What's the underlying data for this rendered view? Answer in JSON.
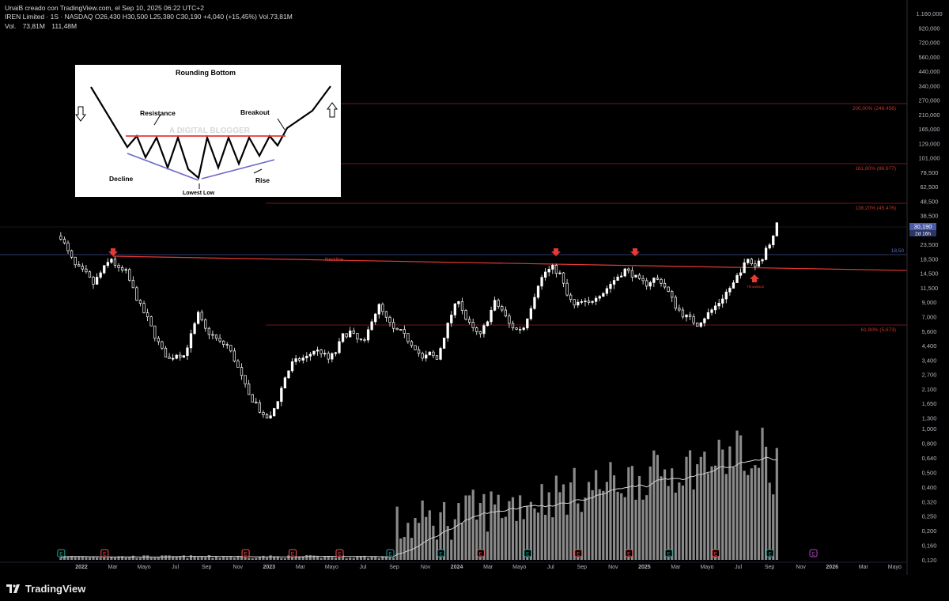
{
  "header": {
    "credit": "UnaiB creado con TradingView.com, el Sep 10, 2025 06:22 UTC+2",
    "symbol_line": "IREN Limited · 1S · NASDAQ  O26,430  H30,500  L25,380  C30,190  +4,040 (+15,45%)  Vol.73,81M",
    "vol_label": "Vol.",
    "vol_value": "73,81M",
    "vol_ma": "111,48M"
  },
  "footer": {
    "brand": "TradingView",
    "logo_icon": "tradingview-logo-icon"
  },
  "colors": {
    "background": "#000000",
    "candle": "#ffffff",
    "fib_line": "#9b1c24",
    "neckline": "#e53935",
    "arrow": "#e53935",
    "volume": "#8a8a8a",
    "volume_ma": "#d0d0d0",
    "last_price_badge": "#4a5ba8"
  },
  "inset": {
    "title": "Rounding Bottom",
    "resistance": "Resistance",
    "breakout": "Breakout",
    "decline": "Decline",
    "rise": "Rise",
    "lowest_low": "Lowest Low",
    "watermark": "A DIGITAL BLOGGER"
  },
  "chart_data": {
    "type": "candlestick",
    "symbol": "IREN Limited",
    "interval": "1S",
    "exchange": "NASDAQ",
    "ohlc_last": {
      "open": 26.43,
      "high": 30.5,
      "low": 25.38,
      "close": 30.19,
      "change": "+4,040 (+15,45%)"
    },
    "price_axis": {
      "scale": "log",
      "ticks": [
        "1.160,000",
        "920,000",
        "720,000",
        "560,000",
        "440,000",
        "340,000",
        "270,000",
        "210,000",
        "165,000",
        "129,000",
        "101,000",
        "78,500",
        "62,500",
        "48,500",
        "38,500",
        "30,190",
        "23,500",
        "18,500",
        "14,500",
        "11,500",
        "9,000",
        "7,000",
        "5,600",
        "4,400",
        "3,400",
        "2,700",
        "2,100",
        "1,650",
        "1,300",
        "1,000",
        "0,800",
        "0,640",
        "0,500",
        "0,400",
        "0,320",
        "0,250",
        "0,200",
        "0,160",
        "0,120"
      ]
    },
    "time_axis": [
      "2022",
      "Mar",
      "Mayo",
      "Jul",
      "Sep",
      "Nov",
      "2023",
      "Mar",
      "Mayo",
      "Jul",
      "Sep",
      "Nov",
      "2024",
      "Mar",
      "Mayo",
      "Jul",
      "Sep",
      "Nov",
      "2025",
      "Mar",
      "Mayo",
      "Jul",
      "Sep",
      "Nov",
      "2026",
      "Mar",
      "Mayo"
    ],
    "last_price_label": "30,190",
    "last_price_countdown": "2d 16h",
    "fib_levels": [
      {
        "label": "200,00% (246,456)",
        "value": 246.456
      },
      {
        "label": "161,80% (86,977)",
        "value": 86.977
      },
      {
        "label": "138,20% (45,476)",
        "value": 45.476
      },
      {
        "label": "61,80% (5,673)",
        "value": 5.673
      }
    ],
    "horizontal_line": {
      "label": "18,50",
      "value": 18.5
    },
    "neckline": {
      "label": "Neckline",
      "from": {
        "x": "2022-02-28",
        "y": 17.9
      },
      "to": {
        "x": "2025-10-20",
        "y": 14.0
      }
    },
    "annotations": [
      {
        "text": "Throwback",
        "x": "2025-07-28",
        "y": 13.5
      }
    ],
    "arrows_down": [
      {
        "x": "2022-02-28",
        "y": 20.0
      },
      {
        "x": "2024-07-08",
        "y": 18.0
      },
      {
        "x": "2024-11-18",
        "y": 18.0
      }
    ],
    "arrows_up": [
      {
        "x": "2025-07-28",
        "y": 12.5
      }
    ],
    "earnings_markers": [
      {
        "x": "2021-11-22",
        "type": "E",
        "color": "green"
      },
      {
        "x": "2022-02-14",
        "type": "E",
        "color": "red"
      },
      {
        "x": "2022-11-14",
        "type": "E",
        "color": "red"
      },
      {
        "x": "2023-02-13",
        "type": "E",
        "color": "red"
      },
      {
        "x": "2023-05-15",
        "type": "E",
        "color": "red"
      },
      {
        "x": "2023-08-21",
        "type": "E",
        "color": "green"
      },
      {
        "x": "2023-11-27",
        "type": "E",
        "color": "green"
      },
      {
        "x": "2024-02-12",
        "type": "E",
        "color": "red"
      },
      {
        "x": "2024-05-13",
        "type": "E",
        "color": "green"
      },
      {
        "x": "2024-08-19",
        "type": "E",
        "color": "red"
      },
      {
        "x": "2024-11-25",
        "type": "E",
        "color": "red"
      },
      {
        "x": "2025-02-10",
        "type": "E",
        "color": "green"
      },
      {
        "x": "2025-05-12",
        "type": "E",
        "color": "red"
      },
      {
        "x": "2025-08-25",
        "type": "E",
        "color": "green"
      },
      {
        "x": "2025-11-17",
        "type": "E",
        "color": "purple"
      }
    ],
    "series": [
      {
        "name": "IREN",
        "anchors": [
          [
            "2021-11-22",
            25.0
          ],
          [
            "2021-12-06",
            19.0
          ],
          [
            "2021-12-20",
            15.0
          ],
          [
            "2022-01-10",
            13.0
          ],
          [
            "2022-01-24",
            11.0
          ],
          [
            "2022-02-14",
            14.5
          ],
          [
            "2022-02-28",
            17.0
          ],
          [
            "2022-03-14",
            14.0
          ],
          [
            "2022-03-28",
            13.5
          ],
          [
            "2022-04-11",
            10.0
          ],
          [
            "2022-04-25",
            7.5
          ],
          [
            "2022-05-09",
            6.0
          ],
          [
            "2022-05-23",
            4.5
          ],
          [
            "2022-06-06",
            3.5
          ],
          [
            "2022-06-20",
            3.0
          ],
          [
            "2022-07-04",
            3.3
          ],
          [
            "2022-07-18",
            3.2
          ],
          [
            "2022-08-01",
            4.5
          ],
          [
            "2022-08-15",
            6.5
          ],
          [
            "2022-08-29",
            5.0
          ],
          [
            "2022-09-12",
            4.5
          ],
          [
            "2022-09-26",
            4.0
          ],
          [
            "2022-10-10",
            3.8
          ],
          [
            "2022-10-24",
            3.0
          ],
          [
            "2022-11-07",
            2.2
          ],
          [
            "2022-11-21",
            1.6
          ],
          [
            "2022-12-05",
            1.4
          ],
          [
            "2022-12-19",
            1.1
          ],
          [
            "2023-01-02",
            1.1
          ],
          [
            "2023-01-16",
            1.5
          ],
          [
            "2023-01-30",
            2.2
          ],
          [
            "2023-02-13",
            2.8
          ],
          [
            "2023-02-27",
            3.0
          ],
          [
            "2023-03-13",
            3.1
          ],
          [
            "2023-03-27",
            3.5
          ],
          [
            "2023-04-10",
            3.4
          ],
          [
            "2023-04-24",
            3.0
          ],
          [
            "2023-05-08",
            3.4
          ],
          [
            "2023-05-22",
            4.5
          ],
          [
            "2023-06-05",
            4.8
          ],
          [
            "2023-06-19",
            4.2
          ],
          [
            "2023-07-03",
            4.0
          ],
          [
            "2023-07-17",
            6.0
          ],
          [
            "2023-07-31",
            7.5
          ],
          [
            "2023-08-14",
            6.0
          ],
          [
            "2023-08-28",
            5.0
          ],
          [
            "2023-09-11",
            4.8
          ],
          [
            "2023-09-25",
            4.2
          ],
          [
            "2023-10-09",
            3.7
          ],
          [
            "2023-10-23",
            3.0
          ],
          [
            "2023-11-06",
            3.3
          ],
          [
            "2023-11-20",
            3.0
          ],
          [
            "2023-12-04",
            4.5
          ],
          [
            "2023-12-18",
            6.5
          ],
          [
            "2024-01-01",
            8.5
          ],
          [
            "2024-01-15",
            6.0
          ],
          [
            "2024-01-29",
            5.0
          ],
          [
            "2024-02-12",
            4.5
          ],
          [
            "2024-02-26",
            6.0
          ],
          [
            "2024-03-11",
            8.0
          ],
          [
            "2024-03-25",
            7.0
          ],
          [
            "2024-04-08",
            5.5
          ],
          [
            "2024-04-22",
            5.0
          ],
          [
            "2024-05-06",
            5.2
          ],
          [
            "2024-05-20",
            7.5
          ],
          [
            "2024-06-03",
            11.0
          ],
          [
            "2024-06-17",
            13.5
          ],
          [
            "2024-07-01",
            14.5
          ],
          [
            "2024-07-15",
            13.0
          ],
          [
            "2024-07-29",
            9.0
          ],
          [
            "2024-08-12",
            7.5
          ],
          [
            "2024-08-26",
            8.0
          ],
          [
            "2024-09-09",
            7.8
          ],
          [
            "2024-09-23",
            9.0
          ],
          [
            "2024-10-07",
            9.5
          ],
          [
            "2024-10-21",
            11.0
          ],
          [
            "2024-11-04",
            12.5
          ],
          [
            "2024-11-18",
            14.0
          ],
          [
            "2024-12-02",
            13.0
          ],
          [
            "2024-12-16",
            11.5
          ],
          [
            "2024-12-30",
            11.0
          ],
          [
            "2025-01-13",
            12.0
          ],
          [
            "2025-01-27",
            11.5
          ],
          [
            "2025-02-10",
            9.5
          ],
          [
            "2025-02-24",
            7.5
          ],
          [
            "2025-03-10",
            6.5
          ],
          [
            "2025-03-24",
            6.0
          ],
          [
            "2025-04-07",
            5.5
          ],
          [
            "2025-04-21",
            6.2
          ],
          [
            "2025-05-05",
            7.0
          ],
          [
            "2025-05-19",
            8.0
          ],
          [
            "2025-06-02",
            9.5
          ],
          [
            "2025-06-16",
            11.0
          ],
          [
            "2025-06-30",
            14.0
          ],
          [
            "2025-07-14",
            16.5
          ],
          [
            "2025-07-28",
            15.0
          ],
          [
            "2025-08-11",
            17.5
          ],
          [
            "2025-08-25",
            22.0
          ],
          [
            "2025-09-01",
            26.43
          ],
          [
            "2025-09-08",
            30.19
          ]
        ]
      },
      {
        "name": "Vol.",
        "unit": "M"
      },
      {
        "name": "Vol. MA",
        "value_last": "111,48M"
      }
    ]
  }
}
